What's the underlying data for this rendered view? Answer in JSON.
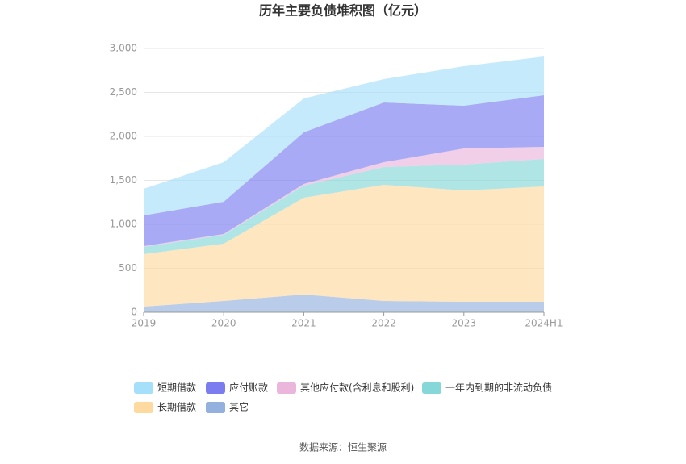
{
  "chart_data": {
    "type": "stacked-area",
    "title": "历年主要负债堆积图（亿元）",
    "categories": [
      "2019",
      "2020",
      "2021",
      "2022",
      "2023",
      "2024H1"
    ],
    "series": [
      {
        "name": "短期借款",
        "color": "#a6dffa",
        "values": [
          303,
          449,
          385,
          266,
          449,
          440
        ]
      },
      {
        "name": "应付账款",
        "color": "#7b7cf0",
        "values": [
          349,
          367,
          587,
          679,
          487,
          587
        ]
      },
      {
        "name": "其他应付款(含利息和股利)",
        "color": "#eab6db",
        "values": [
          9,
          9,
          19,
          55,
          183,
          138
        ]
      },
      {
        "name": "一年内到期的非流动负债",
        "color": "#86d7d8",
        "values": [
          83,
          101,
          137,
          201,
          294,
          312
        ]
      },
      {
        "name": "长期借款",
        "color": "#fed9a0",
        "values": [
          596,
          652,
          1101,
          1322,
          1266,
          1312
        ]
      },
      {
        "name": "其它",
        "color": "#93b0de",
        "values": [
          64,
          128,
          202,
          128,
          119,
          119
        ]
      }
    ],
    "ylim": [
      0,
      3000
    ],
    "yticks": [
      0,
      {
        "value": 500,
        "label": "500"
      },
      {
        "value": 1000,
        "label": "1,000"
      },
      {
        "value": 1500,
        "label": "1,500"
      },
      {
        "value": 2000,
        "label": "2,000"
      },
      {
        "value": 2500,
        "label": "2,500"
      },
      {
        "value": 3000,
        "label": "3,000"
      }
    ],
    "grid": true,
    "source": "数据来源：恒生聚源"
  }
}
